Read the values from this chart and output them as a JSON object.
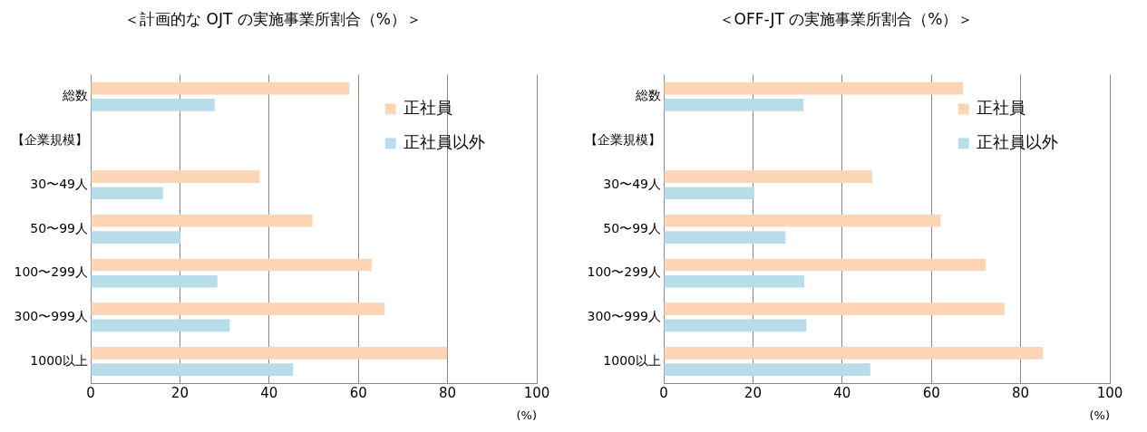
{
  "chart_data": [
    {
      "type": "bar",
      "orientation": "horizontal",
      "title": "＜計画的な OJT の実施事業所割合（%）＞",
      "xlabel": "(%)",
      "categories": [
        "総数",
        "【企業規模】",
        "30〜49人",
        "50〜99人",
        "100〜299人",
        "300〜999人",
        "1000以上"
      ],
      "series": [
        {
          "name": "正社員",
          "color": "#fbd5b5",
          "values": [
            58.0,
            null,
            37.9,
            49.7,
            63.0,
            65.9,
            79.9
          ]
        },
        {
          "name": "正社員以外",
          "color": "#b7dde8",
          "values": [
            27.8,
            null,
            16.2,
            20.1,
            28.4,
            31.2,
            45.4
          ]
        }
      ],
      "xlim": [
        0,
        100
      ],
      "xticks": [
        0,
        20,
        40,
        60,
        80,
        100
      ],
      "grid": "x",
      "legend": "top right"
    },
    {
      "type": "bar",
      "orientation": "horizontal",
      "title": "＜OFF-JT の実施事業所割合（%）＞",
      "xlabel": "(%)",
      "categories": [
        "総数",
        "【企業規模】",
        "30〜49人",
        "50〜99人",
        "100〜299人",
        "300〜999人",
        "1000以上"
      ],
      "series": [
        {
          "name": "正社員",
          "color": "#fbd5b5",
          "values": [
            67.1,
            null,
            46.7,
            62.1,
            72.2,
            76.4,
            85.0
          ]
        },
        {
          "name": "正社員以外",
          "color": "#b7dde8",
          "values": [
            31.3,
            null,
            20.3,
            27.3,
            31.5,
            32.0,
            46.3
          ]
        }
      ],
      "xlim": [
        0,
        100
      ],
      "xticks": [
        0,
        20,
        40,
        60,
        80,
        100
      ],
      "grid": "x",
      "legend": "top right"
    }
  ]
}
